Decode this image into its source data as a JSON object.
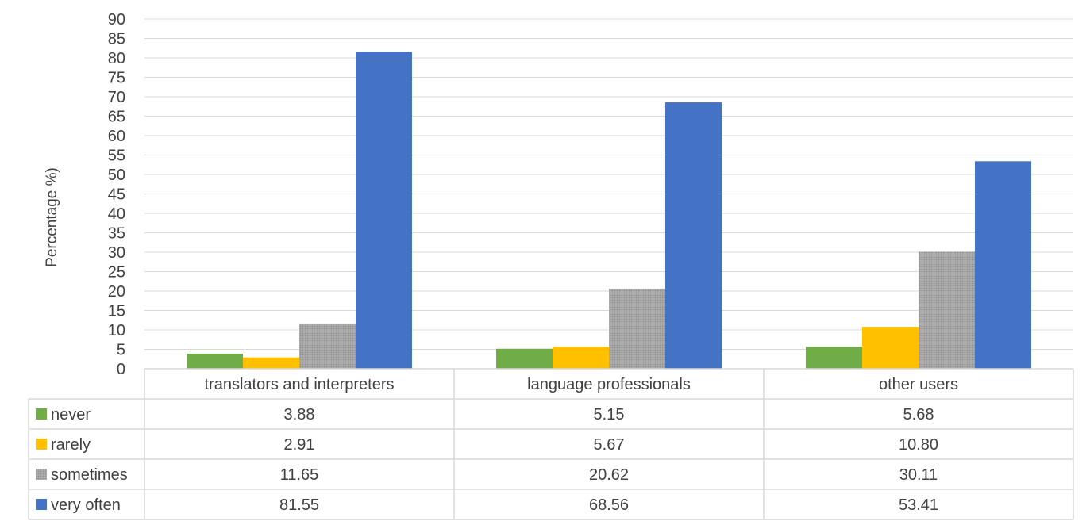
{
  "chart_data": {
    "type": "bar",
    "title": "",
    "xlabel": "",
    "ylabel": "Percentage %)",
    "ylim": [
      0,
      90
    ],
    "ytick_step": 5,
    "grid": true,
    "legend_placement": "data-table",
    "categories": [
      "translators and interpreters",
      "language professionals",
      "other users"
    ],
    "series": [
      {
        "name": "never",
        "color": "#70ad47",
        "values": [
          3.88,
          5.15,
          5.68
        ],
        "labels": [
          "3.88",
          "5.15",
          "5.68"
        ]
      },
      {
        "name": "rarely",
        "color": "#ffc000",
        "values": [
          2.91,
          5.67,
          10.8
        ],
        "labels": [
          "2.91",
          "5.67",
          "10.80"
        ]
      },
      {
        "name": "sometimes",
        "color": "#a5a5a5",
        "pattern": "dots",
        "values": [
          11.65,
          20.62,
          30.11
        ],
        "labels": [
          "11.65",
          "20.62",
          "30.11"
        ]
      },
      {
        "name": "very often",
        "color": "#4472c4",
        "values": [
          81.55,
          68.56,
          53.41
        ],
        "labels": [
          "81.55",
          "68.56",
          "53.41"
        ]
      }
    ]
  }
}
